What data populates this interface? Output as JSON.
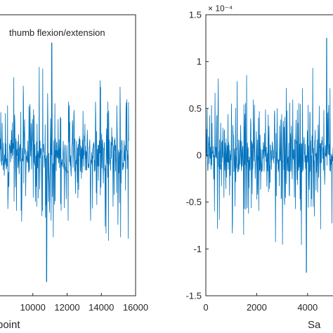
{
  "chart_data": [
    {
      "type": "line",
      "annotation": "thumb flexion/extension",
      "xlabel": "point",
      "xlim": [
        8000,
        16000
      ],
      "xticks": [
        10000,
        12000,
        14000,
        16000
      ],
      "xtick_labels": [
        "10000",
        "12000",
        "14000",
        "16000"
      ],
      "series": [
        {
          "color": "#0072BD",
          "x_range": [
            0,
            15600
          ],
          "envelope": 0.6,
          "peak": 1.2,
          "peak_x": 11100,
          "min": -1.35,
          "min_x": 10800
        }
      ]
    },
    {
      "type": "line",
      "xlabel": "Sa",
      "xlim": [
        0,
        5000
      ],
      "ylim": [
        -1.5,
        1.5
      ],
      "y_scale_exponent": "× 10⁻⁴",
      "yticks": [
        -1.5,
        -1,
        -0.5,
        0,
        0.5,
        1,
        1.5
      ],
      "ytick_labels": [
        "-1.5",
        "-1",
        "-0.5",
        "0",
        "0.5",
        "1",
        "1.5"
      ],
      "xticks": [
        0,
        2000,
        4000
      ],
      "xtick_labels": [
        "0",
        "2000",
        "4000"
      ],
      "series": [
        {
          "color": "#0072BD",
          "x_range": [
            0,
            5000
          ],
          "envelope": 0.6,
          "peak": 1.25,
          "peak_x": 4750,
          "min": -1.25,
          "min_x": 3950
        }
      ]
    }
  ]
}
